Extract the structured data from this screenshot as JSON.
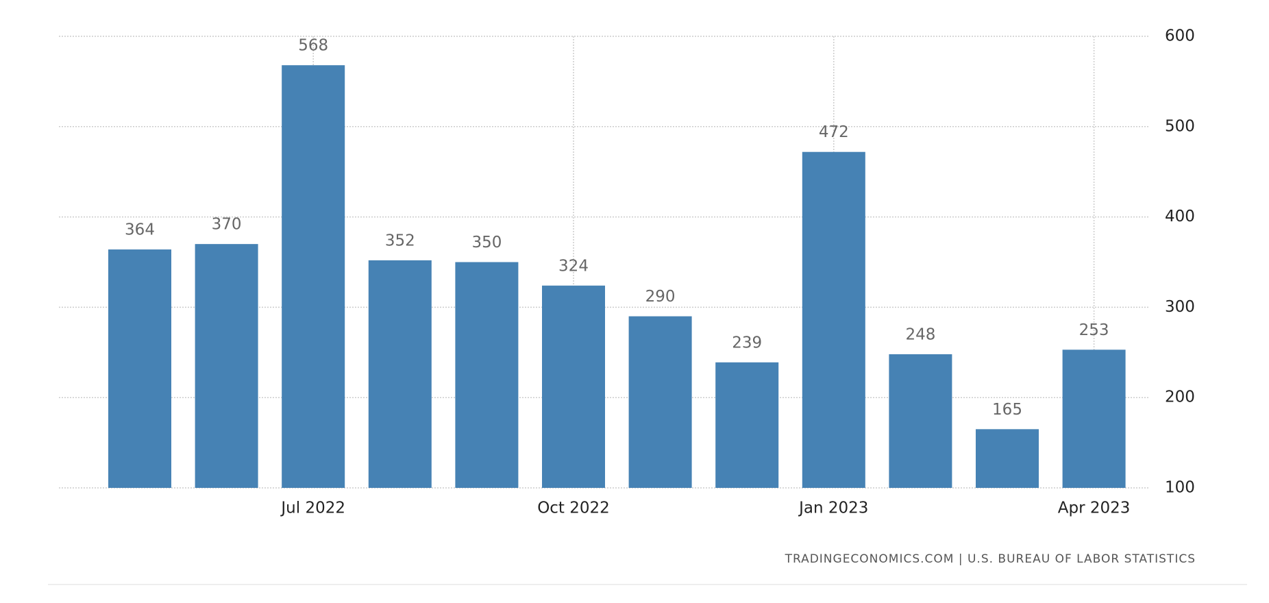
{
  "chart_data": {
    "type": "bar",
    "categories": [
      null,
      null,
      "Jul 2022",
      null,
      null,
      "Oct 2022",
      null,
      null,
      "Jan 2023",
      null,
      null,
      "Apr 2023"
    ],
    "values": [
      364,
      370,
      568,
      352,
      350,
      324,
      290,
      239,
      472,
      248,
      165,
      253
    ],
    "color": "#4682b4",
    "ylim": [
      100,
      600
    ],
    "yticks": [
      100,
      200,
      300,
      400,
      500,
      600
    ],
    "grid": true,
    "source": "TRADINGECONOMICS.COM | U.S. BUREAU OF LABOR STATISTICS"
  }
}
